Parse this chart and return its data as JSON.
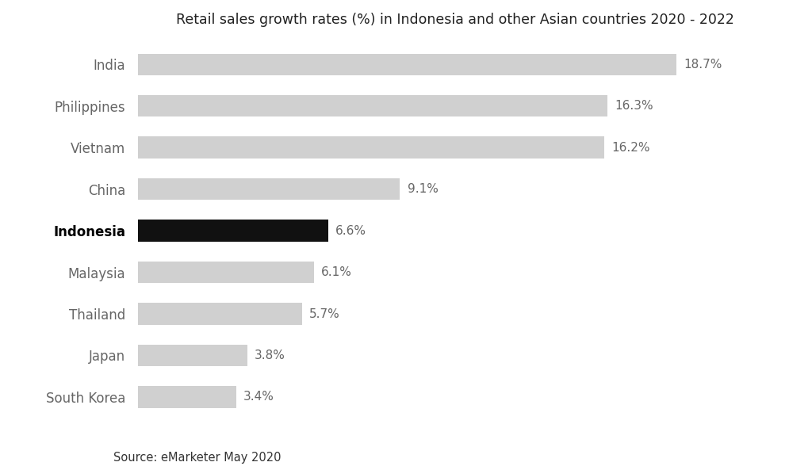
{
  "title": "Retail sales growth rates (%) in Indonesia and other Asian countries 2020 - 2022",
  "source": "Source: eMarketer May 2020",
  "categories": [
    "India",
    "Philippines",
    "Vietnam",
    "China",
    "Indonesia",
    "Malaysia",
    "Thailand",
    "Japan",
    "South Korea"
  ],
  "values": [
    18.7,
    16.3,
    16.2,
    9.1,
    6.6,
    6.1,
    5.7,
    3.8,
    3.4
  ],
  "bar_colors": [
    "#d0d0d0",
    "#d0d0d0",
    "#d0d0d0",
    "#d0d0d0",
    "#111111",
    "#d0d0d0",
    "#d0d0d0",
    "#d0d0d0",
    "#d0d0d0"
  ],
  "highlight_index": 4,
  "background_color": "#ffffff",
  "title_fontsize": 12.5,
  "label_fontsize": 11,
  "ytick_fontsize": 12,
  "source_fontsize": 10.5,
  "bar_height": 0.52,
  "xlim": [
    0,
    22
  ],
  "label_color": "#666666",
  "ytick_color": "#666666"
}
